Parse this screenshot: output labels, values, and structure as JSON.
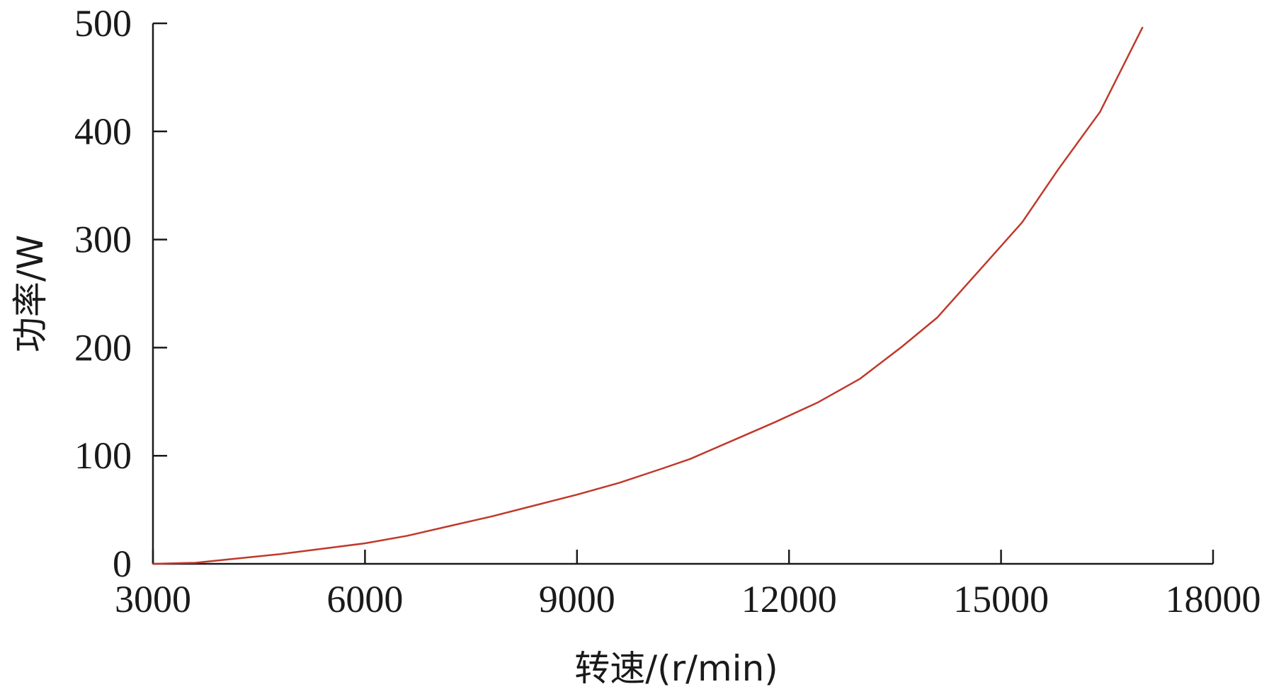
{
  "chart_data": {
    "type": "line",
    "title": "",
    "xlabel": "转速/(r/min)",
    "ylabel": "功率/W",
    "xlim": [
      3000,
      18000
    ],
    "ylim": [
      0,
      500
    ],
    "xticks": [
      3000,
      6000,
      9000,
      12000,
      15000,
      18000
    ],
    "yticks": [
      0,
      100,
      200,
      300,
      400,
      500
    ],
    "grid": false,
    "legend": "none",
    "series": [
      {
        "color": "#c0392b",
        "x": [
          3000,
          3600,
          4200,
          4800,
          5400,
          6000,
          6600,
          7200,
          7800,
          8400,
          9000,
          9600,
          10200,
          10600,
          11200,
          11800,
          12400,
          13000,
          13600,
          14100,
          14700,
          15300,
          15800,
          16400,
          17000
        ],
        "y": [
          0,
          1,
          5,
          9,
          14,
          19,
          26,
          35,
          44,
          54,
          64,
          75,
          88,
          97,
          114,
          131,
          149,
          171,
          201,
          228,
          272,
          316,
          364,
          418,
          496
        ]
      }
    ]
  }
}
